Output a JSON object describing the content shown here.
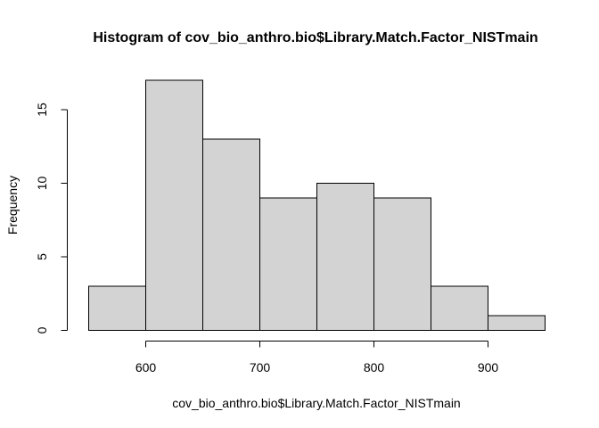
{
  "chart_data": {
    "type": "bar",
    "title": "Histogram of cov_bio_anthro.bio$Library.Match.Factor_NISTmain",
    "xlabel": "cov_bio_anthro.bio$Library.Match.Factor_NISTmain",
    "ylabel": "Frequency",
    "bins": [
      {
        "start": 550,
        "end": 600,
        "count": 3
      },
      {
        "start": 600,
        "end": 650,
        "count": 17
      },
      {
        "start": 650,
        "end": 700,
        "count": 13
      },
      {
        "start": 700,
        "end": 750,
        "count": 9
      },
      {
        "start": 750,
        "end": 800,
        "count": 10
      },
      {
        "start": 800,
        "end": 850,
        "count": 9
      },
      {
        "start": 850,
        "end": 900,
        "count": 3
      },
      {
        "start": 900,
        "end": 950,
        "count": 1
      }
    ],
    "x_ticks": [
      600,
      700,
      800,
      900
    ],
    "y_ticks": [
      0,
      5,
      10,
      15
    ],
    "xlim": [
      550,
      950
    ],
    "ylim": [
      0,
      17
    ],
    "grid": false,
    "legend": "none",
    "colors": {
      "bar_fill": "#d3d3d3",
      "bar_stroke": "#000000",
      "axis": "#000000",
      "text": "#000000",
      "background": "#ffffff"
    }
  }
}
